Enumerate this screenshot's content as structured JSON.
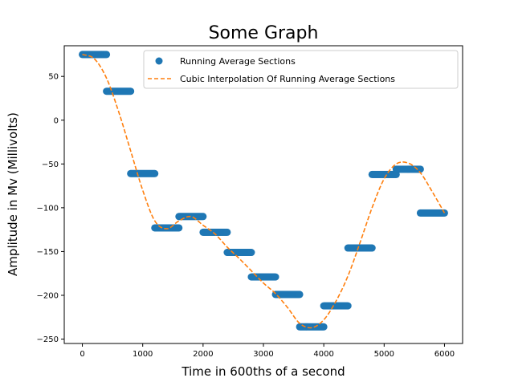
{
  "chart_data": {
    "type": "scatter",
    "title": "Some Graph",
    "xlabel": "Time in 600ths of a second",
    "ylabel": "Amplitude in Mv (Millivolts)",
    "xlim": [
      -300,
      6300
    ],
    "ylim": [
      -255,
      85
    ],
    "xticks": [
      0,
      1000,
      2000,
      3000,
      4000,
      5000,
      6000
    ],
    "yticks": [
      50,
      0,
      -50,
      -100,
      -150,
      -200,
      -250
    ],
    "grid": false,
    "legend_position": "top-right",
    "series": [
      {
        "name": "Running Average Sections",
        "kind": "scatter",
        "color": "#1f77b4",
        "segments": [
          {
            "x_start": 0,
            "x_end": 400,
            "y": 75
          },
          {
            "x_start": 400,
            "x_end": 800,
            "y": 33
          },
          {
            "x_start": 800,
            "x_end": 1200,
            "y": -61
          },
          {
            "x_start": 1200,
            "x_end": 1600,
            "y": -123
          },
          {
            "x_start": 1600,
            "x_end": 2000,
            "y": -110
          },
          {
            "x_start": 2000,
            "x_end": 2400,
            "y": -128
          },
          {
            "x_start": 2400,
            "x_end": 2800,
            "y": -151
          },
          {
            "x_start": 2800,
            "x_end": 3200,
            "y": -179
          },
          {
            "x_start": 3200,
            "x_end": 3600,
            "y": -199
          },
          {
            "x_start": 3600,
            "x_end": 4000,
            "y": -236
          },
          {
            "x_start": 4000,
            "x_end": 4400,
            "y": -212
          },
          {
            "x_start": 4400,
            "x_end": 4800,
            "y": -146
          },
          {
            "x_start": 4800,
            "x_end": 5200,
            "y": -62
          },
          {
            "x_start": 5200,
            "x_end": 5600,
            "y": -56
          },
          {
            "x_start": 5600,
            "x_end": 6000,
            "y": -106
          }
        ]
      },
      {
        "name": "Cubic Interpolation Of Running Average Sections",
        "kind": "line",
        "style": "dashed",
        "color": "#ff7f0e",
        "x": [
          0,
          200,
          400,
          600,
          800,
          1000,
          1200,
          1400,
          1600,
          1800,
          2000,
          2200,
          2400,
          2600,
          2800,
          3000,
          3200,
          3400,
          3600,
          3800,
          4000,
          4200,
          4400,
          4600,
          4800,
          5000,
          5200,
          5400,
          5600,
          5800,
          6000
        ],
        "y": [
          75,
          70,
          48,
          10,
          -35,
          -80,
          -115,
          -124,
          -115,
          -110,
          -120,
          -130,
          -145,
          -158,
          -172,
          -186,
          -198,
          -214,
          -232,
          -237,
          -228,
          -207,
          -178,
          -140,
          -100,
          -67,
          -50,
          -49,
          -60,
          -82,
          -106
        ]
      }
    ]
  }
}
